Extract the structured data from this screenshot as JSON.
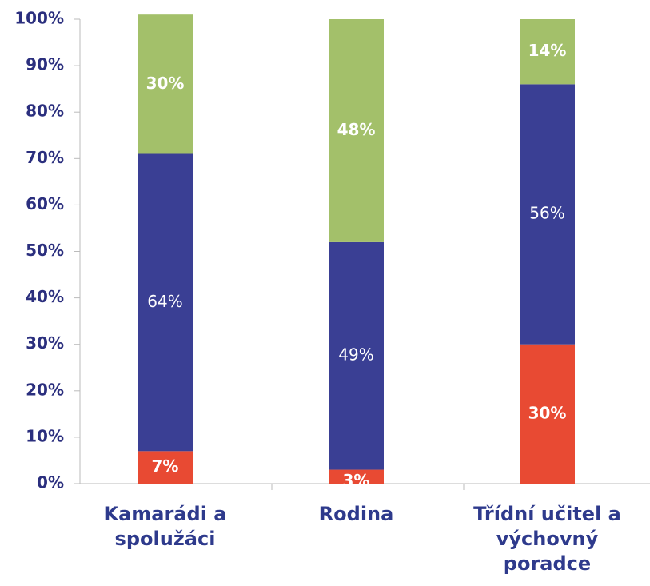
{
  "chart_data": {
    "type": "stacked_bar",
    "categories": [
      "Kamarádi a spolužáci",
      "Rodina",
      "Třídní učitel a výchovný poradce"
    ],
    "series": [
      {
        "color": "#e84a33",
        "values": [
          7,
          3,
          30
        ],
        "value_labels": [
          "7%",
          "3%",
          "30%"
        ]
      },
      {
        "color": "#3a3f94",
        "values": [
          64,
          49,
          56
        ],
        "value_labels": [
          "64%",
          "49%",
          "56%"
        ]
      },
      {
        "color": "#a3c06a",
        "values": [
          30,
          48,
          14
        ],
        "value_labels": [
          "30%",
          "48%",
          "14%"
        ]
      }
    ],
    "ylim": [
      0,
      100
    ],
    "yticks": [
      {
        "value": 0,
        "label": "0%"
      },
      {
        "value": 10,
        "label": "10%"
      },
      {
        "value": 20,
        "label": "20%"
      },
      {
        "value": 30,
        "label": "30%"
      },
      {
        "value": 40,
        "label": "40%"
      },
      {
        "value": 50,
        "label": "50%"
      },
      {
        "value": 60,
        "label": "60%"
      },
      {
        "value": 70,
        "label": "70%"
      },
      {
        "value": 80,
        "label": "80%"
      },
      {
        "value": 90,
        "label": "90%"
      },
      {
        "value": 100,
        "label": "100%"
      }
    ]
  }
}
